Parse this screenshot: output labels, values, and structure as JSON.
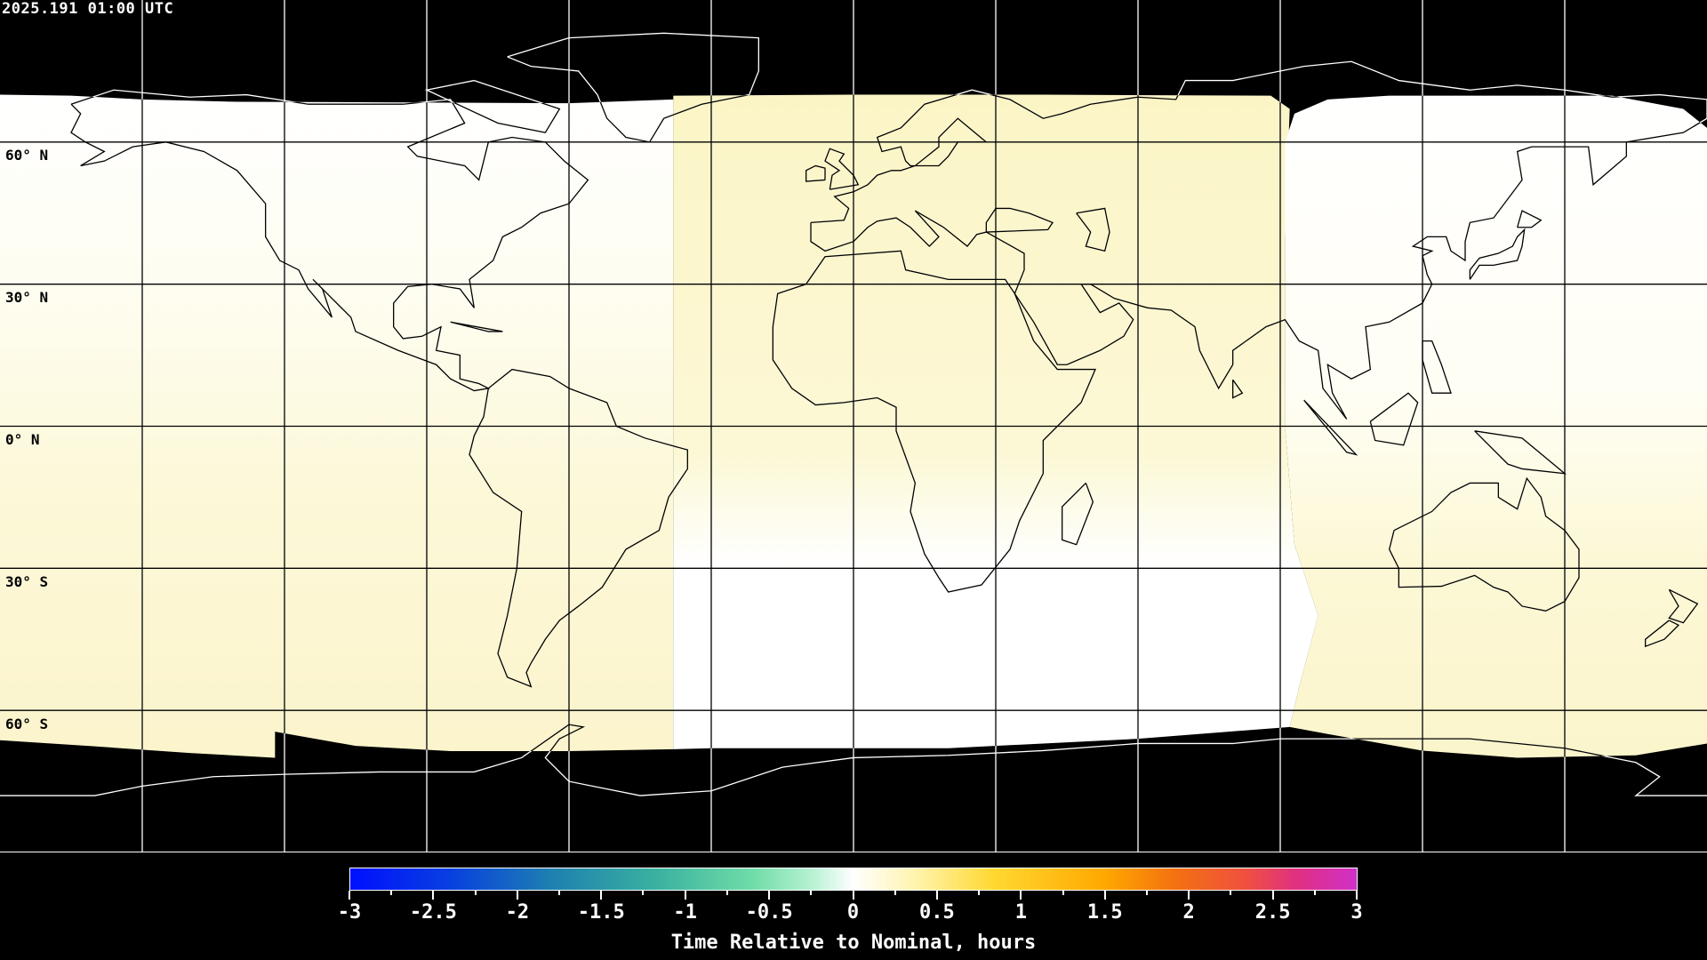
{
  "timestamp": "2025.191 01:00 UTC",
  "lat_labels": [
    "60° N",
    "30° N",
    "0° N",
    "30° S",
    "60° S"
  ],
  "colorbar": {
    "title": "Time Relative to Nominal, hours",
    "range": [
      -3,
      3
    ],
    "tick_labels": [
      "-3",
      "-2.5",
      "-2",
      "-1.5",
      "-1",
      "-0.5",
      "0",
      "0.5",
      "1",
      "1.5",
      "2",
      "2.5",
      "3"
    ],
    "colors": {
      "min": "#0010ff",
      "zero": "#ffffff",
      "max": "#d030c8"
    }
  },
  "map": {
    "projection": "equirectangular",
    "gridline_spacing_deg": 30,
    "no_data_color": "#000000",
    "coastline_color": "#000000"
  }
}
